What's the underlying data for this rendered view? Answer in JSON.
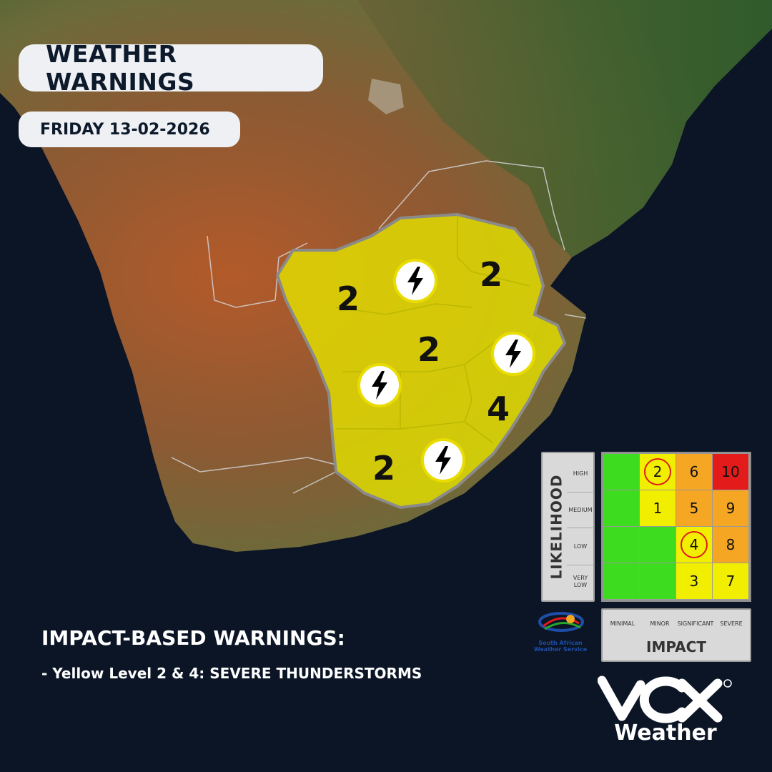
{
  "header": {
    "title": "WEATHER WARNINGS",
    "date": "FRIDAY 13-02-2026"
  },
  "map": {
    "warning_zone_color": "#e3e000",
    "levels": [
      "2",
      "2",
      "2",
      "4",
      "2"
    ],
    "hazard_icon": "lightning-bolt-icon"
  },
  "footer": {
    "heading": "IMPACT-BASED WARNINGS:",
    "line": "- Yellow Level 2 & 4: SEVERE THUNDERSTORMS"
  },
  "risk_matrix": {
    "likelihood_title": "LIKELIHOOD",
    "likelihood_levels": [
      "HIGH",
      "MEDIUM",
      "LOW",
      "VERY LOW"
    ],
    "impact_title": "IMPACT",
    "impact_levels": [
      "MINIMAL",
      "MINOR",
      "SIGNIFICANT",
      "SEVERE"
    ],
    "rows": [
      [
        "",
        "2",
        "6",
        "10"
      ],
      [
        "",
        "1",
        "5",
        "9"
      ],
      [
        "",
        "",
        "4",
        "8"
      ],
      [
        "",
        "",
        "3",
        "7"
      ]
    ],
    "colors": {
      "green": "#3ddc1f",
      "yellow": "#f2ee00",
      "orange": "#f5a623",
      "red": "#e31b1b"
    }
  },
  "branding": {
    "saws": "South African Weather Service",
    "vox_word": "Weather"
  }
}
